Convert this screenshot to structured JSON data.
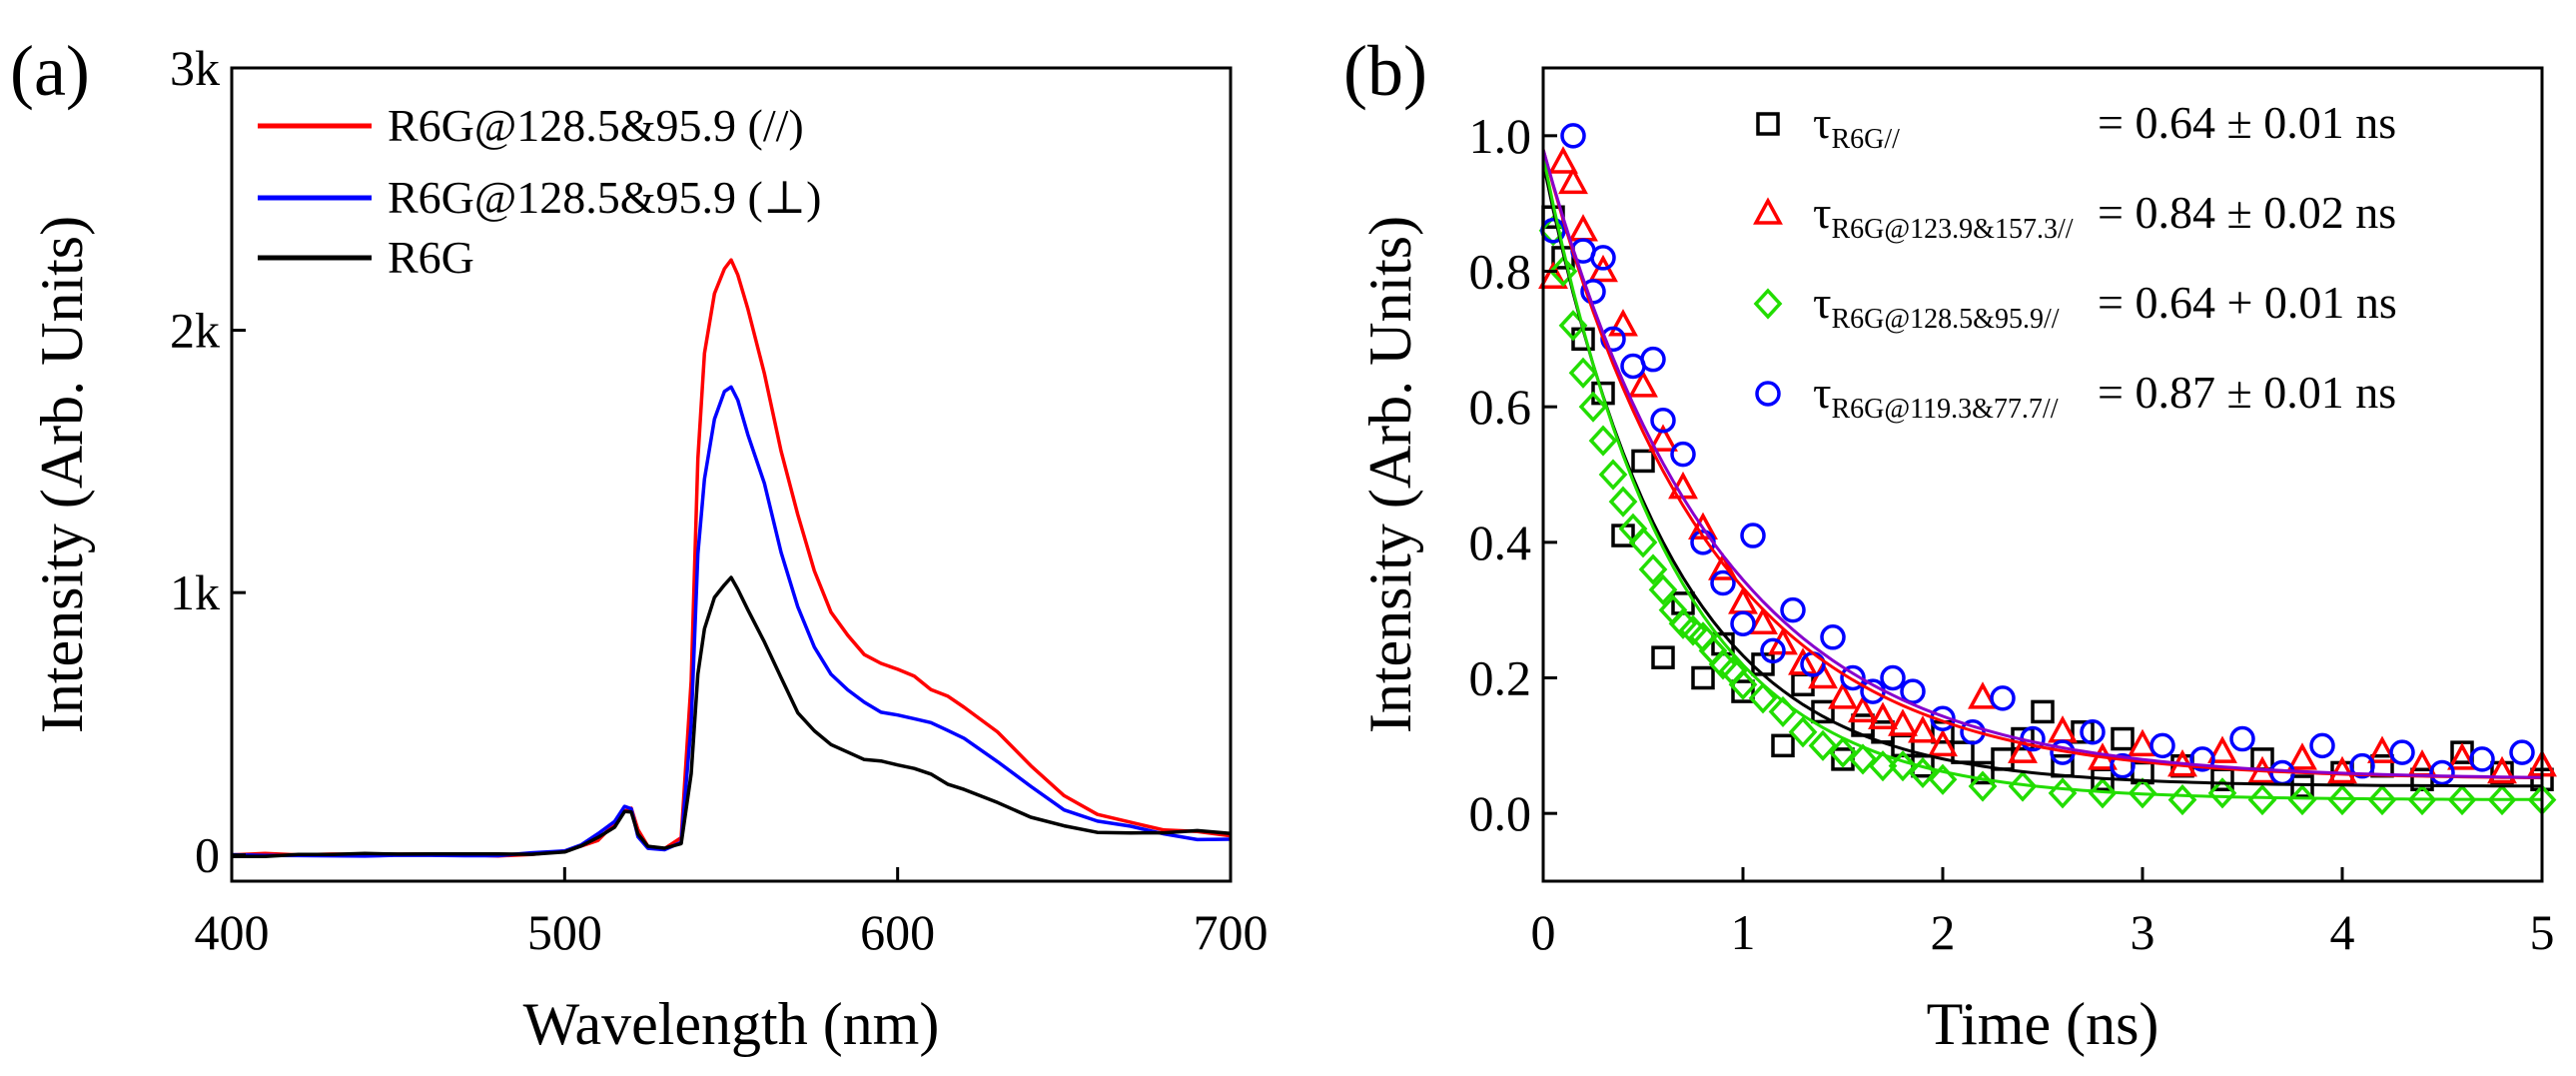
{
  "chart_data": [
    {
      "panel_label": "(a)",
      "type": "line",
      "xlabel": "Wavelength (nm)",
      "ylabel": "Intensity (Arb. Units)",
      "xlim": [
        400,
        700
      ],
      "ylim": [
        -100,
        3000
      ],
      "x_ticks": [
        400,
        500,
        600,
        700
      ],
      "x_tick_labels": [
        "400",
        "500",
        "600",
        "700"
      ],
      "y_ticks": [
        0,
        1000,
        2000,
        3000
      ],
      "y_tick_labels": [
        "0",
        "1k",
        "2k",
        "3k"
      ],
      "legend_position": "top-left",
      "series": [
        {
          "name": "R6G@128.5&95.9 (//)",
          "color": "#ff0000",
          "x": [
            400,
            410,
            420,
            430,
            440,
            450,
            460,
            470,
            480,
            490,
            500,
            505,
            510,
            515,
            518,
            520,
            522,
            525,
            530,
            535,
            538,
            540,
            542,
            545,
            548,
            550,
            552,
            555,
            560,
            565,
            570,
            575,
            580,
            585,
            590,
            595,
            600,
            605,
            610,
            615,
            620,
            630,
            640,
            650,
            660,
            670,
            680,
            690,
            700
          ],
          "y": [
            0,
            0,
            0,
            0,
            0,
            0,
            0,
            0,
            0,
            5,
            15,
            35,
            70,
            120,
            170,
            170,
            80,
            30,
            20,
            60,
            650,
            1500,
            1900,
            2150,
            2250,
            2280,
            2220,
            2100,
            1850,
            1550,
            1280,
            1070,
            920,
            830,
            760,
            720,
            690,
            665,
            640,
            610,
            570,
            470,
            350,
            240,
            160,
            110,
            90,
            80,
            70
          ]
        },
        {
          "name": "R6G@128.5&95.9 (⊥)",
          "color": "#0000ff",
          "x": [
            400,
            410,
            420,
            430,
            440,
            450,
            460,
            470,
            480,
            490,
            500,
            505,
            510,
            515,
            518,
            520,
            522,
            525,
            530,
            535,
            538,
            540,
            542,
            545,
            548,
            550,
            552,
            555,
            560,
            565,
            570,
            575,
            580,
            585,
            590,
            595,
            600,
            605,
            610,
            615,
            620,
            630,
            640,
            650,
            660,
            670,
            680,
            690,
            700
          ],
          "y": [
            0,
            0,
            0,
            0,
            0,
            0,
            0,
            0,
            0,
            5,
            15,
            35,
            70,
            120,
            170,
            170,
            80,
            30,
            20,
            50,
            500,
            1150,
            1450,
            1650,
            1750,
            1780,
            1720,
            1600,
            1400,
            1150,
            940,
            800,
            700,
            640,
            590,
            560,
            540,
            520,
            500,
            470,
            430,
            340,
            250,
            170,
            120,
            95,
            85,
            75,
            70
          ]
        },
        {
          "name": "R6G",
          "color": "#000000",
          "x": [
            400,
            410,
            420,
            430,
            440,
            450,
            460,
            470,
            480,
            490,
            500,
            505,
            510,
            515,
            518,
            520,
            522,
            525,
            530,
            535,
            538,
            540,
            542,
            545,
            548,
            550,
            552,
            555,
            560,
            565,
            570,
            575,
            580,
            585,
            590,
            595,
            600,
            605,
            610,
            615,
            620,
            630,
            640,
            650,
            660,
            670,
            680,
            690,
            700
          ],
          "y": [
            0,
            0,
            0,
            0,
            0,
            0,
            0,
            0,
            0,
            5,
            15,
            35,
            70,
            120,
            170,
            170,
            80,
            30,
            20,
            40,
            300,
            680,
            860,
            980,
            1040,
            1060,
            1020,
            950,
            820,
            680,
            560,
            480,
            420,
            385,
            360,
            345,
            330,
            315,
            300,
            280,
            260,
            210,
            160,
            120,
            95,
            85,
            80,
            75,
            70
          ]
        }
      ]
    },
    {
      "panel_label": "(b)",
      "type": "scatter",
      "xlabel": "Time (ns)",
      "ylabel": "Intensity (Arb. Units)",
      "xlim": [
        0,
        5
      ],
      "ylim": [
        -0.1,
        1.1
      ],
      "x_ticks": [
        0,
        1,
        2,
        3,
        4,
        5
      ],
      "x_tick_labels": [
        "0",
        "1",
        "2",
        "3",
        "4",
        "5"
      ],
      "y_ticks": [
        0.0,
        0.2,
        0.4,
        0.6,
        0.8,
        1.0
      ],
      "y_tick_labels": [
        "0.0",
        "0.2",
        "0.4",
        "0.6",
        "0.8",
        "1.0"
      ],
      "legend_position": "top-right",
      "series": [
        {
          "name": "τR6G//",
          "label_main": "τ",
          "label_sub": "R6G//",
          "value": "= 0.64 ± 0.01 ns",
          "color": "#000000",
          "marker": "square",
          "tau": 0.64,
          "amplitude": 0.92,
          "offset": 0.04,
          "fit_color": "#000000",
          "x": [
            0.05,
            0.1,
            0.2,
            0.3,
            0.4,
            0.5,
            0.6,
            0.7,
            0.8,
            0.9,
            1.0,
            1.1,
            1.2,
            1.3,
            1.4,
            1.5,
            1.6,
            1.7,
            1.8,
            1.9,
            2.0,
            2.1,
            2.2,
            2.3,
            2.4,
            2.5,
            2.6,
            2.7,
            2.8,
            2.9,
            3.0,
            3.2,
            3.4,
            3.6,
            3.8,
            4.0,
            4.2,
            4.4,
            4.6,
            4.8,
            5.0
          ],
          "y": [
            0.88,
            0.82,
            0.7,
            0.62,
            0.41,
            0.52,
            0.23,
            0.31,
            0.2,
            0.25,
            0.18,
            0.22,
            0.1,
            0.19,
            0.15,
            0.08,
            0.13,
            0.12,
            0.1,
            0.07,
            0.12,
            0.09,
            0.06,
            0.08,
            0.11,
            0.15,
            0.07,
            0.12,
            0.05,
            0.11,
            0.06,
            0.07,
            0.05,
            0.08,
            0.04,
            0.06,
            0.07,
            0.05,
            0.09,
            0.06,
            0.05
          ]
        },
        {
          "name": "τR6G@123.9&157.3//",
          "label_main": "τ",
          "label_sub": "R6G@123.9&157.3//",
          "value": "= 0.84 ± 0.02 ns",
          "color": "#ff0000",
          "marker": "triangle",
          "tau": 0.84,
          "amplitude": 0.93,
          "offset": 0.05,
          "fit_color": "#ff0000",
          "x": [
            0.05,
            0.1,
            0.15,
            0.2,
            0.3,
            0.4,
            0.5,
            0.6,
            0.7,
            0.8,
            0.9,
            1.0,
            1.1,
            1.2,
            1.3,
            1.4,
            1.5,
            1.6,
            1.7,
            1.8,
            1.9,
            2.0,
            2.2,
            2.4,
            2.6,
            2.8,
            3.0,
            3.2,
            3.4,
            3.6,
            3.8,
            4.0,
            4.2,
            4.4,
            4.6,
            4.8,
            5.0
          ],
          "y": [
            0.79,
            0.96,
            0.93,
            0.86,
            0.8,
            0.72,
            0.63,
            0.55,
            0.48,
            0.42,
            0.36,
            0.31,
            0.28,
            0.25,
            0.22,
            0.2,
            0.17,
            0.15,
            0.14,
            0.13,
            0.12,
            0.1,
            0.17,
            0.09,
            0.12,
            0.08,
            0.1,
            0.07,
            0.09,
            0.06,
            0.08,
            0.06,
            0.09,
            0.07,
            0.08,
            0.06,
            0.07
          ]
        },
        {
          "name": "τR6G@128.5&95.9//",
          "label_main": "τ",
          "label_sub": "R6G@128.5&95.9//",
          "value": "= 0.64 + 0.01 ns",
          "color": "#22dd00",
          "marker": "diamond",
          "tau": 0.64,
          "amplitude": 0.95,
          "offset": 0.02,
          "fit_color": "#22dd00",
          "x": [
            0.05,
            0.1,
            0.15,
            0.2,
            0.25,
            0.3,
            0.35,
            0.4,
            0.45,
            0.5,
            0.55,
            0.6,
            0.65,
            0.7,
            0.75,
            0.8,
            0.85,
            0.9,
            0.95,
            1.0,
            1.1,
            1.2,
            1.3,
            1.4,
            1.5,
            1.6,
            1.7,
            1.8,
            1.9,
            2.0,
            2.2,
            2.4,
            2.6,
            2.8,
            3.0,
            3.2,
            3.4,
            3.6,
            3.8,
            4.0,
            4.2,
            4.4,
            4.6,
            4.8,
            5.0
          ],
          "y": [
            0.86,
            0.8,
            0.72,
            0.65,
            0.6,
            0.55,
            0.5,
            0.46,
            0.42,
            0.4,
            0.36,
            0.33,
            0.3,
            0.28,
            0.27,
            0.26,
            0.24,
            0.22,
            0.21,
            0.19,
            0.17,
            0.15,
            0.12,
            0.1,
            0.09,
            0.08,
            0.07,
            0.07,
            0.06,
            0.05,
            0.04,
            0.04,
            0.03,
            0.03,
            0.03,
            0.02,
            0.03,
            0.02,
            0.02,
            0.02,
            0.02,
            0.02,
            0.02,
            0.02,
            0.02
          ]
        },
        {
          "name": "τR6G@119.3&77.7//",
          "label_main": "τ",
          "label_sub": "R6G@119.3&77.7//",
          "value": "= 0.87 ± 0.01 ns",
          "color": "#0000ff",
          "marker": "circle",
          "tau": 0.87,
          "amplitude": 0.93,
          "offset": 0.05,
          "fit_color": "#8800cc",
          "x": [
            0.05,
            0.15,
            0.2,
            0.25,
            0.3,
            0.35,
            0.45,
            0.55,
            0.6,
            0.7,
            0.8,
            0.9,
            1.0,
            1.05,
            1.15,
            1.25,
            1.35,
            1.45,
            1.55,
            1.65,
            1.75,
            1.85,
            2.0,
            2.15,
            2.3,
            2.45,
            2.6,
            2.75,
            2.9,
            3.1,
            3.3,
            3.5,
            3.7,
            3.9,
            4.1,
            4.3,
            4.5,
            4.7,
            4.9
          ],
          "y": [
            0.86,
            1.0,
            0.83,
            0.77,
            0.82,
            0.7,
            0.66,
            0.67,
            0.58,
            0.53,
            0.4,
            0.34,
            0.28,
            0.41,
            0.24,
            0.3,
            0.22,
            0.26,
            0.2,
            0.18,
            0.2,
            0.18,
            0.14,
            0.12,
            0.17,
            0.11,
            0.09,
            0.12,
            0.07,
            0.1,
            0.08,
            0.11,
            0.06,
            0.1,
            0.07,
            0.09,
            0.06,
            0.08,
            0.09
          ]
        }
      ]
    }
  ]
}
